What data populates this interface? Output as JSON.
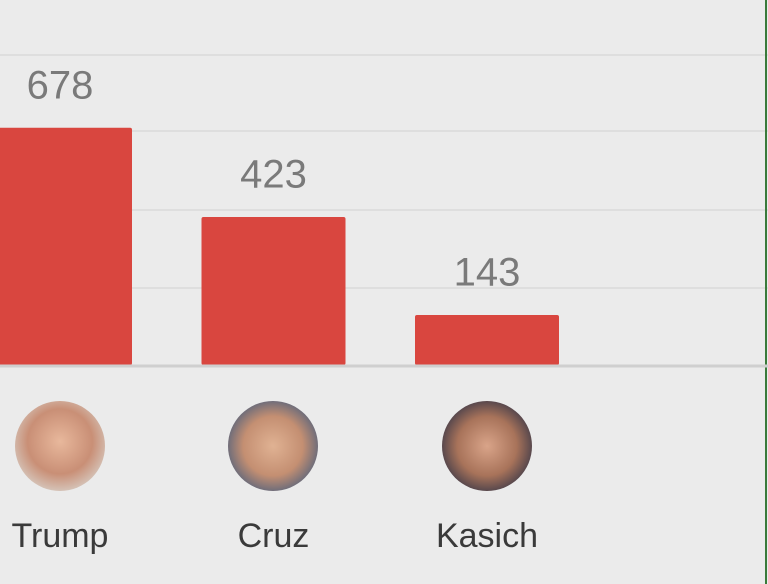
{
  "chart_data": {
    "type": "bar",
    "categories": [
      "Trump",
      "Cruz",
      "Kasich"
    ],
    "values": [
      678,
      423,
      143
    ],
    "color": "#d9463f",
    "ylim": [
      0,
      886
    ]
  }
}
